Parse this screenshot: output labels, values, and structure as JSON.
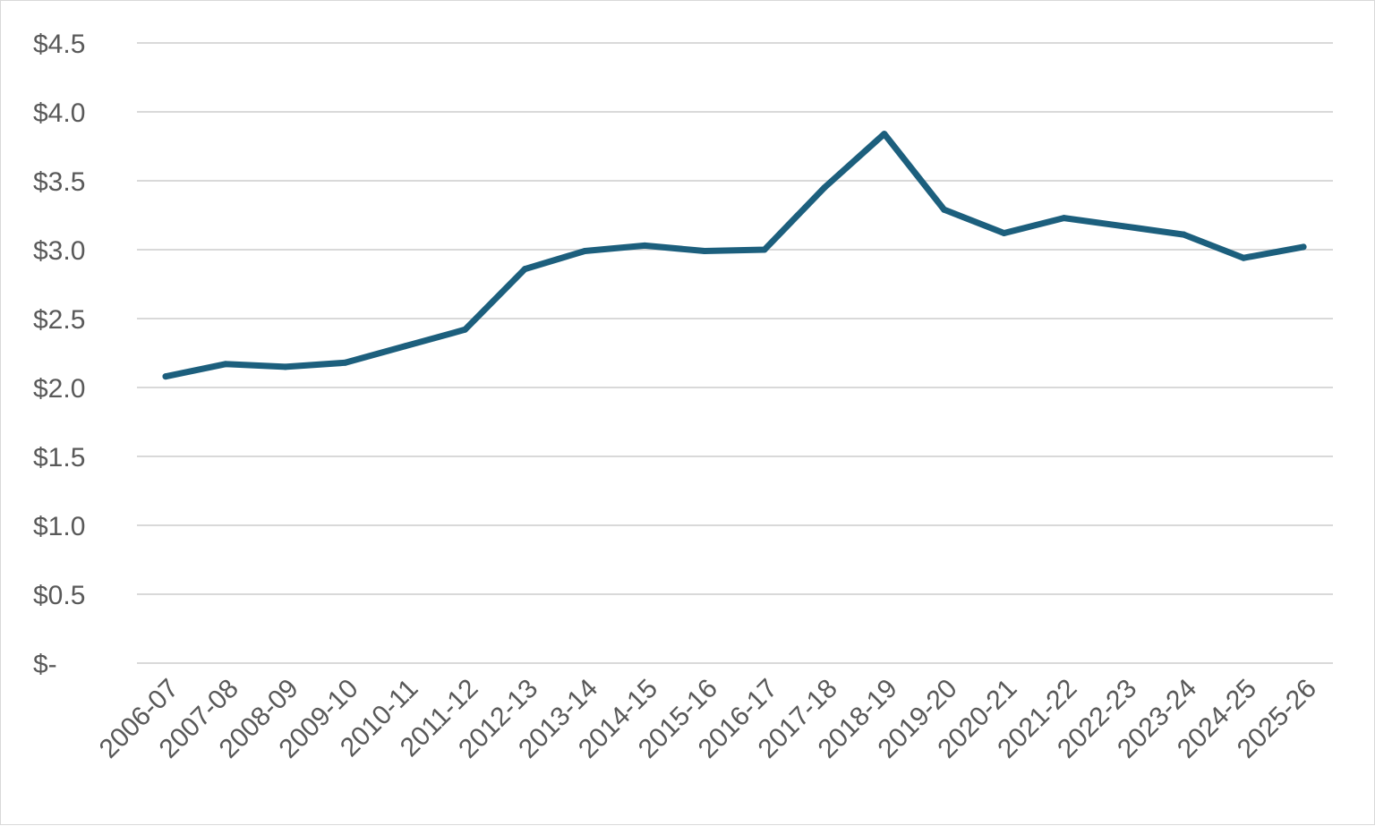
{
  "chart_data": {
    "type": "line",
    "title": "",
    "xlabel": "",
    "ylabel": "",
    "categories": [
      "2006-07",
      "2007-08",
      "2008-09",
      "2009-10",
      "2010-11",
      "2011-12",
      "2012-13",
      "2013-14",
      "2014-15",
      "2015-16",
      "2016-17",
      "2017-18",
      "2018-19",
      "2019-20",
      "2020-21",
      "2021-22",
      "2022-23",
      "2023-24",
      "2024-25",
      "2025-26"
    ],
    "series": [
      {
        "color": "#1c5f7d",
        "values": [
          2.08,
          2.17,
          2.15,
          2.18,
          2.3,
          2.42,
          2.86,
          2.99,
          3.03,
          2.99,
          3.0,
          3.45,
          3.84,
          3.29,
          3.12,
          3.23,
          3.17,
          3.11,
          2.94,
          3.02
        ]
      }
    ],
    "ylim": [
      0,
      4.5
    ],
    "yticks": [
      {
        "value": 0,
        "label": "$-"
      },
      {
        "value": 0.5,
        "label": "$0.5"
      },
      {
        "value": 1.0,
        "label": "$1.0"
      },
      {
        "value": 1.5,
        "label": "$1.5"
      },
      {
        "value": 2.0,
        "label": "$2.0"
      },
      {
        "value": 2.5,
        "label": "$2.5"
      },
      {
        "value": 3.0,
        "label": "$3.0"
      },
      {
        "value": 3.5,
        "label": "$3.5"
      },
      {
        "value": 4.0,
        "label": "$4.0"
      },
      {
        "value": 4.5,
        "label": "$4.5"
      }
    ],
    "grid": "horizontal",
    "legend": "none"
  }
}
